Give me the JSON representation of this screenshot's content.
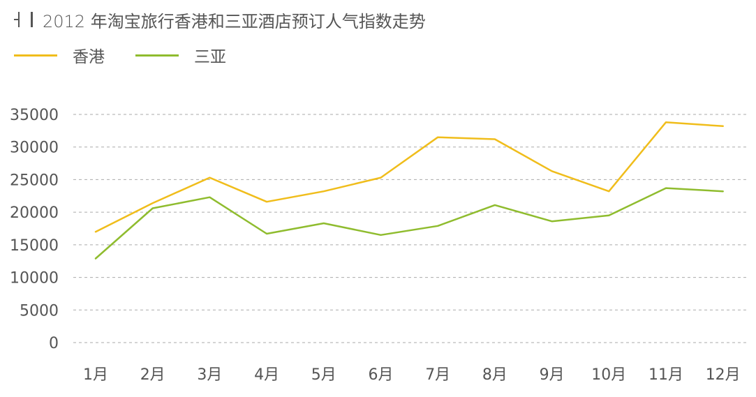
{
  "title": "2012 年淘宝旅行香港和三亚酒店预订人气指数走势",
  "colors": {
    "hongkong": "#f0bd1b",
    "sanya": "#8fbc2e",
    "grid": "#aaaaaa",
    "text": "#555555"
  },
  "chart_data": {
    "type": "line",
    "title": "2012 年淘宝旅行香港和三亚酒店预订人气指数走势",
    "categories": [
      "1月",
      "2月",
      "3月",
      "4月",
      "5月",
      "6月",
      "7月",
      "8月",
      "9月",
      "10月",
      "11月",
      "12月"
    ],
    "series": [
      {
        "name": "香港",
        "color": "#f0bd1b",
        "values": [
          17000,
          21400,
          25300,
          21600,
          23200,
          25300,
          31500,
          31200,
          26300,
          23200,
          33800,
          33200
        ]
      },
      {
        "name": "三亚",
        "color": "#8fbc2e",
        "values": [
          12900,
          20600,
          22300,
          16700,
          18300,
          16500,
          17900,
          21100,
          18600,
          19500,
          23700,
          23200
        ]
      }
    ],
    "yticks": [
      "0",
      "5000",
      "10000",
      "15000",
      "20000",
      "25000",
      "30000",
      "35000"
    ],
    "ylim": [
      0,
      35000
    ],
    "grid": true,
    "legend_position": "top-left"
  }
}
